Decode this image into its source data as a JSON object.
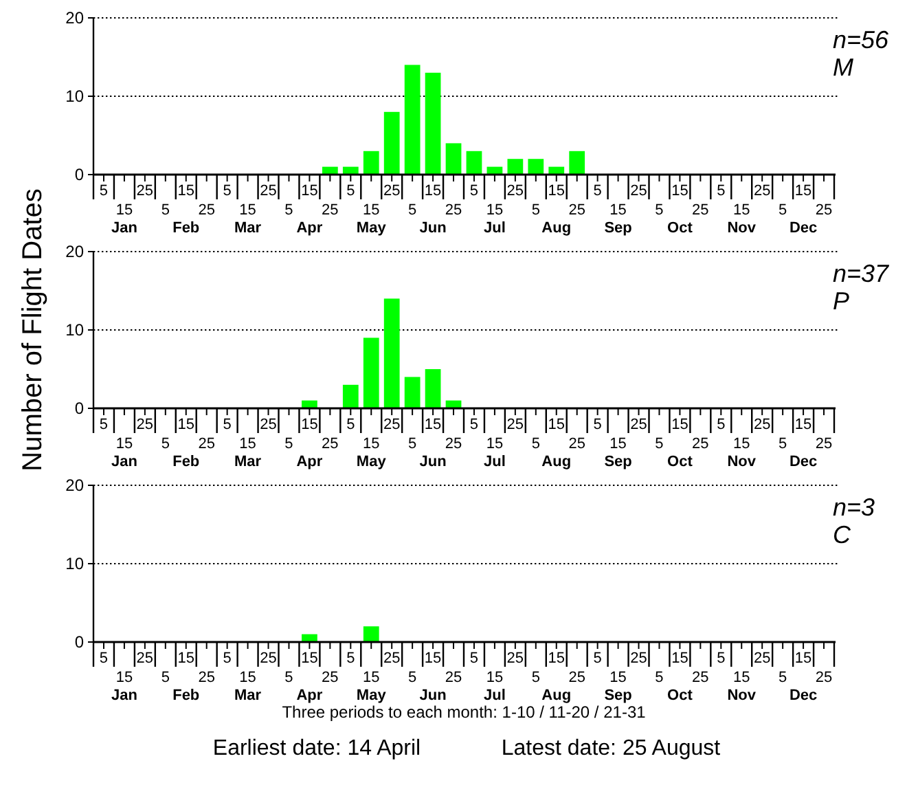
{
  "chart_data": [
    {
      "type": "bar",
      "title": "n=56",
      "subtitle": "M",
      "categories": [
        "5",
        "15\nJan",
        "25",
        "5",
        "15\nFeb",
        "25",
        "5",
        "15\nMar",
        "25",
        "5",
        "15\nApr",
        "25",
        "5",
        "15\nMay",
        "25",
        "5",
        "15\nJun",
        "25",
        "5",
        "15\nJul",
        "25",
        "5",
        "15\nAug",
        "25",
        "5",
        "15\nSep",
        "25",
        "5",
        "15\nOct",
        "25",
        "5",
        "15\nNov",
        "25",
        "5",
        "15\nDec",
        "25"
      ],
      "values": [
        0,
        0,
        0,
        0,
        0,
        0,
        0,
        0,
        0,
        0,
        0,
        1,
        1,
        3,
        8,
        14,
        13,
        4,
        3,
        1,
        2,
        2,
        1,
        3,
        0,
        0,
        0,
        0,
        0,
        0,
        0,
        0,
        0,
        0,
        0,
        0
      ],
      "color": "#00ff00",
      "ylim": [
        0,
        20
      ],
      "yticks": [
        0,
        10,
        20
      ],
      "grid": "y"
    },
    {
      "type": "bar",
      "title": "n=37",
      "subtitle": "P",
      "ylabel": "Number of Flight Dates",
      "categories": [
        "5",
        "15\nJan",
        "25",
        "5",
        "15\nFeb",
        "25",
        "5",
        "15\nMar",
        "25",
        "5",
        "15\nApr",
        "25",
        "5",
        "15\nMay",
        "25",
        "5",
        "15\nJun",
        "25",
        "5",
        "15\nJul",
        "25",
        "5",
        "15\nAug",
        "25",
        "5",
        "15\nSep",
        "25",
        "5",
        "15\nOct",
        "25",
        "5",
        "15\nNov",
        "25",
        "5",
        "15\nDec",
        "25"
      ],
      "values": [
        0,
        0,
        0,
        0,
        0,
        0,
        0,
        0,
        0,
        0,
        1,
        0,
        3,
        9,
        14,
        4,
        5,
        1,
        0,
        0,
        0,
        0,
        0,
        0,
        0,
        0,
        0,
        0,
        0,
        0,
        0,
        0,
        0,
        0,
        0,
        0
      ],
      "color": "#00ff00",
      "ylim": [
        0,
        20
      ],
      "yticks": [
        0,
        10,
        20
      ],
      "grid": "y"
    },
    {
      "type": "bar",
      "title": "n=3",
      "subtitle": "C",
      "xlabel": "Three periods to each month: 1-10 / 11-20 / 21-31",
      "categories": [
        "5",
        "15\nJan",
        "25",
        "5",
        "15\nFeb",
        "25",
        "5",
        "15\nMar",
        "25",
        "5",
        "15\nApr",
        "25",
        "5",
        "15\nMay",
        "25",
        "5",
        "15\nJun",
        "25",
        "5",
        "15\nJul",
        "25",
        "5",
        "15\nAug",
        "25",
        "5",
        "15\nSep",
        "25",
        "5",
        "15\nOct",
        "25",
        "5",
        "15\nNov",
        "25",
        "5",
        "15\nDec",
        "25"
      ],
      "values": [
        0,
        0,
        0,
        0,
        0,
        0,
        0,
        0,
        0,
        0,
        1,
        0,
        0,
        2,
        0,
        0,
        0,
        0,
        0,
        0,
        0,
        0,
        0,
        0,
        0,
        0,
        0,
        0,
        0,
        0,
        0,
        0,
        0,
        0,
        0,
        0
      ],
      "color": "#00ff00",
      "ylim": [
        0,
        20
      ],
      "yticks": [
        0,
        10,
        20
      ],
      "grid": "y",
      "annotations": [
        "Earliest date: 14 April",
        "Latest date: 25 August"
      ]
    }
  ]
}
